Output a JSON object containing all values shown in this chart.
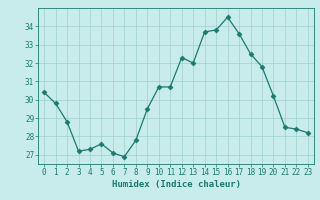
{
  "x": [
    0,
    1,
    2,
    3,
    4,
    5,
    6,
    7,
    8,
    9,
    10,
    11,
    12,
    13,
    14,
    15,
    16,
    17,
    18,
    19,
    20,
    21,
    22,
    23
  ],
  "y": [
    30.4,
    29.8,
    28.8,
    27.2,
    27.3,
    27.6,
    27.1,
    26.9,
    27.8,
    29.5,
    30.7,
    30.7,
    32.3,
    32.0,
    33.7,
    33.8,
    34.5,
    33.6,
    32.5,
    31.8,
    30.2,
    28.5,
    28.4,
    28.2
  ],
  "line_color": "#1a7a6e",
  "marker": "D",
  "marker_size": 2.5,
  "bg_color": "#c8ecec",
  "grid_color": "#a0cfcf",
  "xlabel": "Humidex (Indice chaleur)",
  "ylim": [
    26.5,
    35.0
  ],
  "yticks": [
    27,
    28,
    29,
    30,
    31,
    32,
    33,
    34
  ],
  "xticks": [
    0,
    1,
    2,
    3,
    4,
    5,
    6,
    7,
    8,
    9,
    10,
    11,
    12,
    13,
    14,
    15,
    16,
    17,
    18,
    19,
    20,
    21,
    22,
    23
  ],
  "label_fontsize": 6.5,
  "tick_fontsize": 5.5
}
